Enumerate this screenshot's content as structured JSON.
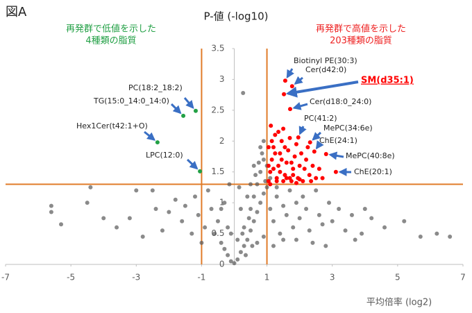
{
  "chart_data": {
    "type": "scatter",
    "panel_label": "図A",
    "title": "P-値 (-log10)",
    "x_label": "平均倍率 (log2)",
    "notes": [
      {
        "lines": [
          "再発群で低値を示した",
          "4種類の脂質"
        ],
        "color": "#22a045"
      },
      {
        "lines": [
          "再発群で高値を示した",
          "203種類の脂質"
        ],
        "color": "#ee2222"
      }
    ],
    "xlim": [
      -7,
      7
    ],
    "xticks": [
      -7,
      -5,
      -3,
      -1,
      1,
      3,
      5,
      7
    ],
    "ylim": [
      0,
      3.5
    ],
    "yticks": [
      0,
      0.5,
      1,
      1.5,
      2,
      2.5,
      3,
      3.5
    ],
    "thresholds": {
      "x": [
        -1,
        1
      ],
      "y": 1.3,
      "color": "#e07b28"
    },
    "series": [
      {
        "color": "#595959",
        "x": [
          -5.6,
          -5.6,
          -4.4,
          -4.0,
          -3.6,
          -3.2,
          -2.5,
          -2.4,
          -2.2,
          -2.0,
          -1.8,
          -1.6,
          -1.5,
          -1.3,
          -1.2,
          -1.1,
          -0.9,
          -0.8,
          -0.7,
          -0.6,
          -0.5,
          -0.4,
          -0.3,
          -0.2,
          -0.1,
          0,
          0.1,
          0.2,
          0.3,
          0.4,
          0.5,
          0.6,
          0.7,
          0.8,
          0.9,
          1.0,
          0.3,
          0.5,
          0.6,
          0.7,
          0.8,
          0.9,
          0.5,
          0.6,
          0.8,
          0.9,
          0.27,
          -0.3,
          -0.1,
          0.1,
          0.2,
          0.4,
          1.1,
          1.2,
          1.3,
          1.4,
          1.5,
          1.6,
          1.7,
          1.8,
          1.9,
          2.0,
          2.1,
          2.2,
          2.3,
          2.5,
          2.6,
          2.7,
          2.9,
          3.0,
          3.2,
          3.4,
          3.6,
          3.9,
          4.2,
          4.6,
          5.2,
          5.7,
          6.2,
          6.6,
          1.2,
          0.9,
          0.7,
          1.5,
          2.4,
          1.1,
          1.3,
          0.95,
          -1.0,
          -2.8,
          -4.5,
          -5.3,
          -3.0,
          1.0,
          0.85,
          0.55,
          0.35,
          0.45,
          0.65,
          0.75,
          -0.2,
          -0.4,
          -0.15,
          0.15,
          0.25,
          3.7,
          4.0,
          2.8,
          1.9
        ],
        "values": [
          0.95,
          0.85,
          1.25,
          0.75,
          0.6,
          0.75,
          1.2,
          0.9,
          0.55,
          0.85,
          1.05,
          0.7,
          0.95,
          0.5,
          1.1,
          0.8,
          0.6,
          1.2,
          0.9,
          0.5,
          0.7,
          0.35,
          0.25,
          0.15,
          0.05,
          0.02,
          0.08,
          0.2,
          0.3,
          0.4,
          0.55,
          0.7,
          0.85,
          1.0,
          1.15,
          1.25,
          0.6,
          0.9,
          1.1,
          1.3,
          1.5,
          1.7,
          1.3,
          1.6,
          1.9,
          2.0,
          2.78,
          1.0,
          0.5,
          0.4,
          0.9,
          1.1,
          0.9,
          0.7,
          1.1,
          0.5,
          0.95,
          0.8,
          1.2,
          0.6,
          1.0,
          0.75,
          1.1,
          0.9,
          0.55,
          1.2,
          0.8,
          0.65,
          1.0,
          0.7,
          0.9,
          0.55,
          0.8,
          0.5,
          0.75,
          0.6,
          0.7,
          0.45,
          0.5,
          0.45,
          0.3,
          0.45,
          0.35,
          0.4,
          0.35,
          1.4,
          1.25,
          1.35,
          0.35,
          0.45,
          1.0,
          0.65,
          1.2,
          1.6,
          1.8,
          0.3,
          0.15,
          0.75,
          1.45,
          1.65,
          0.6,
          0.9,
          1.3,
          1.25,
          0.5,
          0.4,
          0.9,
          0.3,
          0.4
        ]
      },
      {
        "color": "#ff0000",
        "x": [
          1.05,
          1.1,
          1.15,
          1.2,
          1.25,
          1.3,
          1.35,
          1.4,
          1.45,
          1.5,
          1.55,
          1.6,
          1.65,
          1.7,
          1.75,
          1.8,
          1.85,
          1.9,
          1.95,
          2.0,
          2.05,
          2.1,
          2.15,
          2.2,
          2.3,
          2.4,
          2.5,
          2.6,
          1.1,
          1.3,
          1.5,
          1.7,
          1.9,
          1.2,
          1.4,
          1.6,
          1.8,
          2.0,
          1.15,
          1.35,
          1.55,
          1.45,
          1.25,
          1.05,
          1.05,
          2.25,
          1.75,
          2.7,
          2.35,
          1.12
        ],
        "values": [
          1.35,
          1.5,
          1.7,
          1.9,
          2.1,
          1.4,
          1.6,
          1.8,
          2.0,
          2.2,
          1.45,
          1.65,
          1.85,
          2.05,
          1.35,
          1.55,
          1.75,
          1.95,
          1.4,
          1.6,
          1.8,
          1.35,
          1.55,
          1.7,
          1.45,
          1.6,
          1.4,
          1.55,
          1.3,
          1.35,
          1.35,
          1.4,
          1.32,
          1.55,
          1.5,
          1.4,
          1.45,
          1.38,
          2.0,
          2.15,
          1.9,
          1.7,
          1.8,
          1.6,
          1.9,
          1.9,
          1.65,
          1.4,
          1.35,
          2.25
        ]
      }
    ],
    "annotations": [
      {
        "label": "PC(18:2_18:2)",
        "x": -1.18,
        "y": 2.49,
        "color": "#22a045"
      },
      {
        "label": "TG(15:0_14:0_14:0)",
        "x": -1.56,
        "y": 2.41,
        "color": "#22a045"
      },
      {
        "label": "Hex1Cer(t42:1+O)",
        "x": -2.35,
        "y": 1.98,
        "color": "#22a045"
      },
      {
        "label": "LPC(12:0)",
        "x": -1.05,
        "y": 1.51,
        "color": "#22a045"
      },
      {
        "label": "Biotinyl PE(30:3)",
        "x": 1.56,
        "y": 2.98,
        "color": "#ff0000"
      },
      {
        "label": "Cer(d42:0)",
        "x": 1.77,
        "y": 2.89,
        "color": "#ff0000"
      },
      {
        "label": "SM(d35:1)",
        "x": 1.52,
        "y": 2.76,
        "color": "#ff0000",
        "emphasis": true
      },
      {
        "label": "Cer(d18:0_24:0)",
        "x": 1.71,
        "y": 2.52,
        "color": "#ff0000"
      },
      {
        "label": "PC(41:2)",
        "x": 1.96,
        "y": 2.06,
        "color": "#ff0000"
      },
      {
        "label": "MePC(34:6e)",
        "x": 2.32,
        "y": 1.98,
        "color": "#ff0000"
      },
      {
        "label": "ChE(24:1)",
        "x": 2.45,
        "y": 1.83,
        "color": "#ff0000"
      },
      {
        "label": "MePC(40:8e)",
        "x": 2.81,
        "y": 1.79,
        "color": "#ff0000"
      },
      {
        "label": "ChE(20:1)",
        "x": 3.11,
        "y": 1.5,
        "color": "#ff0000"
      }
    ]
  }
}
